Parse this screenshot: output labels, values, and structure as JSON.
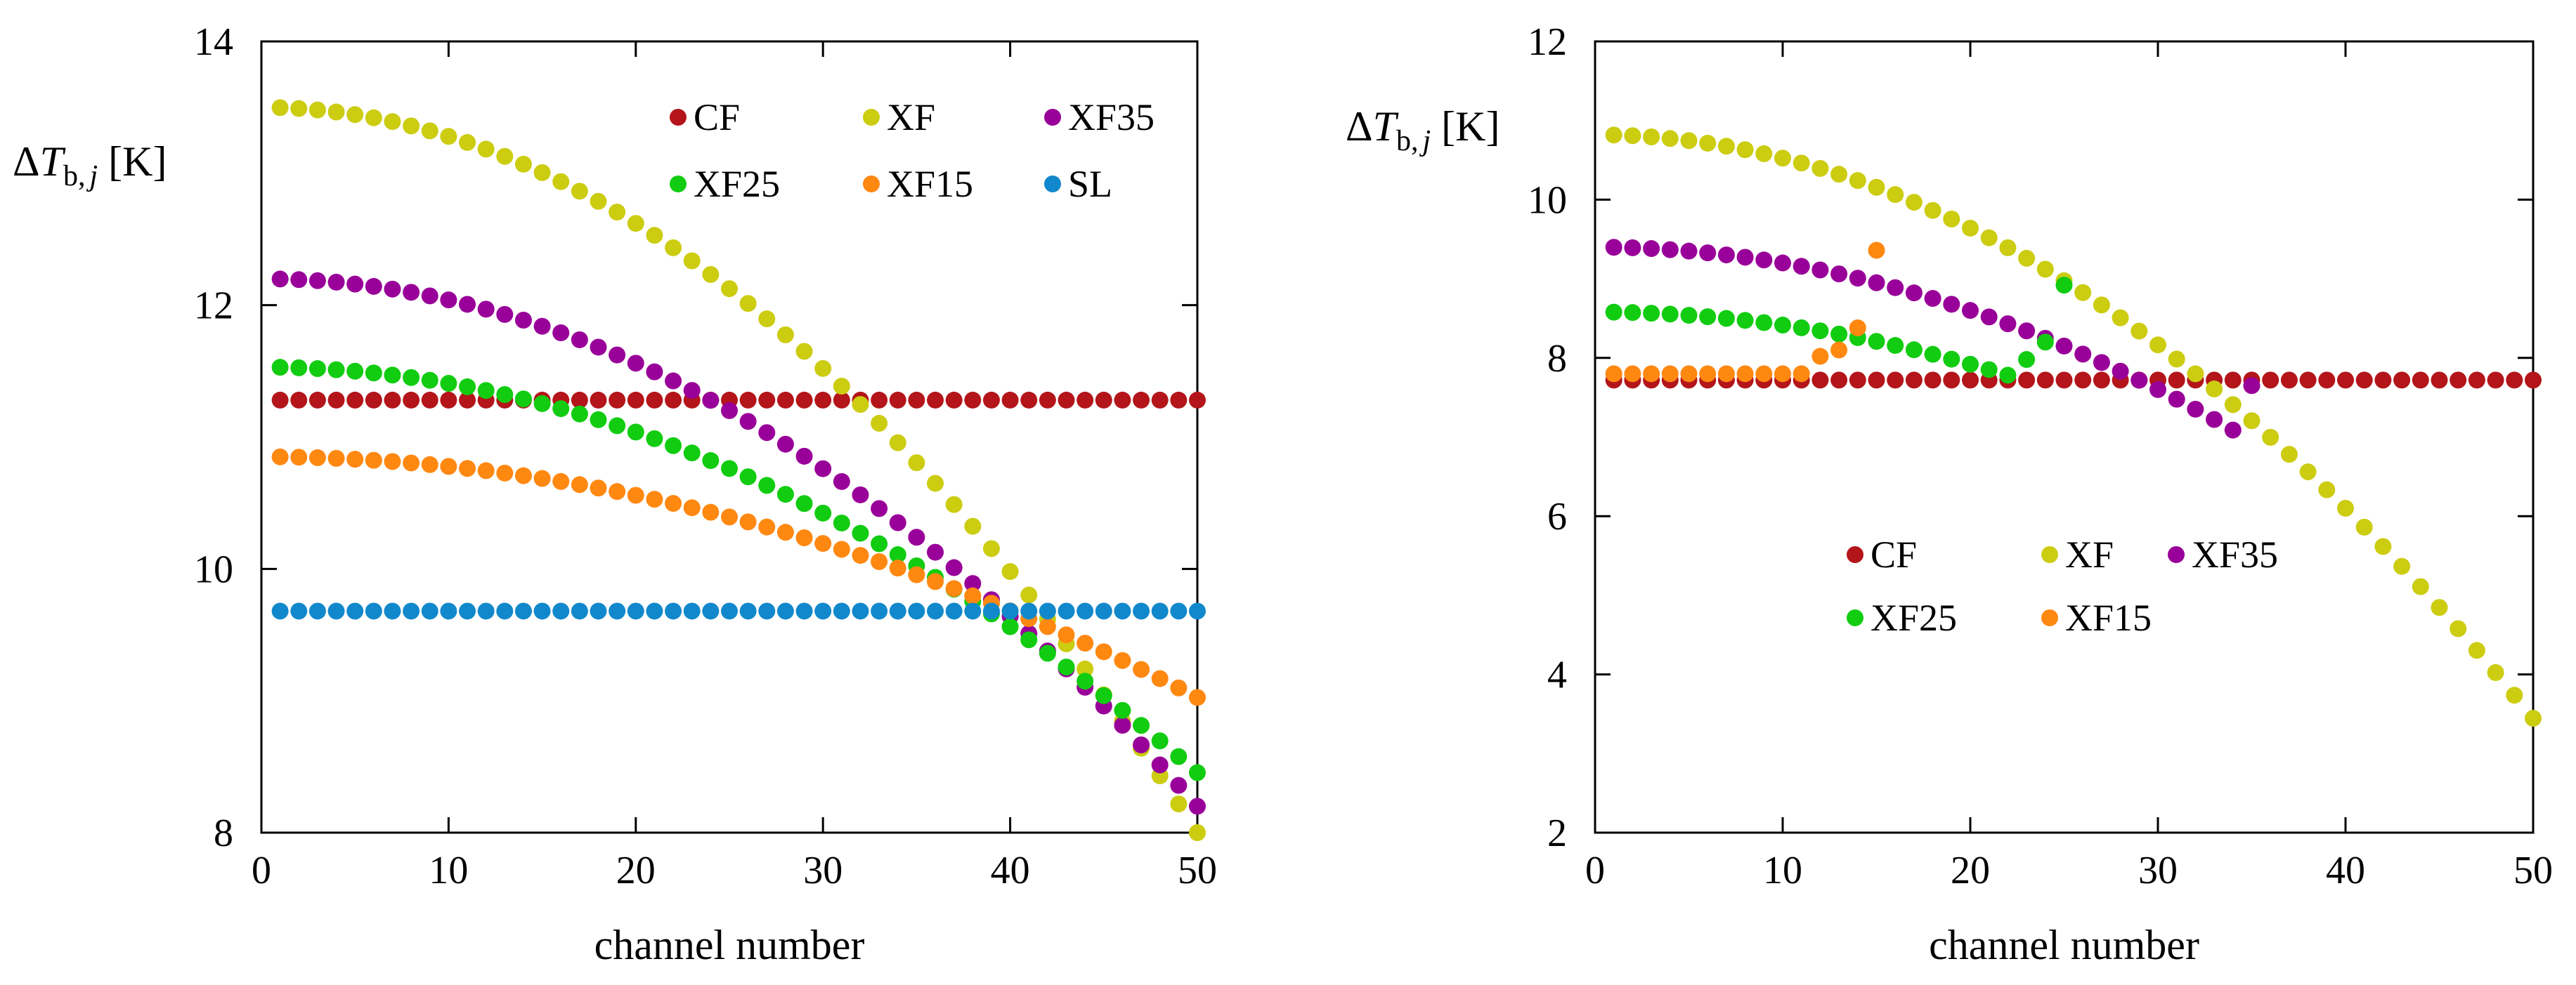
{
  "chart_data": [
    {
      "type": "scatter",
      "id": "left",
      "title": "",
      "xlabel": "channel number",
      "ylabel": {
        "delta": "Δ",
        "var": "T",
        "sub1": "b,",
        "sub2": "j",
        "unit": " [K]"
      },
      "xlim": [
        0,
        50
      ],
      "ylim": [
        8,
        14
      ],
      "xticks": [
        "0",
        "10",
        "20",
        "30",
        "40",
        "50"
      ],
      "yticks": [
        "8",
        "10",
        "12",
        "14"
      ],
      "x": [
        1,
        2,
        3,
        4,
        5,
        6,
        7,
        8,
        9,
        10,
        11,
        12,
        13,
        14,
        15,
        16,
        17,
        18,
        19,
        20,
        21,
        22,
        23,
        24,
        25,
        26,
        27,
        28,
        29,
        30,
        31,
        32,
        33,
        34,
        35,
        36,
        37,
        38,
        39,
        40,
        41,
        42,
        43,
        44,
        45,
        46,
        47,
        48,
        49,
        50
      ],
      "legend_position": "top-right",
      "series": [
        {
          "name": "CF",
          "color": "#b3151a",
          "model": "const",
          "params": {
            "c": 11.28
          }
        },
        {
          "name": "XF",
          "color": "#cccc11",
          "model": "quad",
          "params": {
            "a": 13.5,
            "b": 0.0022
          }
        },
        {
          "name": "XF35",
          "color": "#990099",
          "model": "quad",
          "params": {
            "a": 12.2,
            "b": 0.0016
          }
        },
        {
          "name": "XF25",
          "color": "#11cc11",
          "model": "quad",
          "params": {
            "a": 11.53,
            "b": 0.00123
          }
        },
        {
          "name": "XF15",
          "color": "#ff8811",
          "model": "quad",
          "params": {
            "a": 10.85,
            "b": 0.00073
          }
        },
        {
          "name": "SL",
          "color": "#1188cc",
          "model": "const",
          "params": {
            "c": 9.68
          }
        }
      ]
    },
    {
      "type": "scatter",
      "id": "right",
      "title": "",
      "xlabel": "channel number",
      "ylabel": {
        "delta": "Δ",
        "var": "T",
        "sub1": "b,",
        "sub2": "j",
        "unit": " [K]"
      },
      "xlim": [
        0,
        50
      ],
      "ylim": [
        2,
        12
      ],
      "xticks": [
        "0",
        "10",
        "20",
        "30",
        "40",
        "50"
      ],
      "yticks": [
        "2",
        "4",
        "6",
        "8",
        "10",
        "12"
      ],
      "legend_position": "center-left",
      "series": [
        {
          "name": "CF",
          "color": "#b3151a",
          "model": "const",
          "params": {
            "c": 7.72
          },
          "x_range": [
            1,
            50
          ]
        },
        {
          "name": "XF",
          "color": "#cccc11",
          "model": "quad",
          "params": {
            "a": 10.82,
            "b": 0.00295
          },
          "x_range": [
            1,
            50
          ]
        },
        {
          "name": "XF35",
          "color": "#990099",
          "model": "quad",
          "params": {
            "a": 9.4,
            "b": 0.002
          },
          "x_range": [
            1,
            34
          ]
        },
        {
          "name": "XF25",
          "color": "#11cc11",
          "model": "quad",
          "params": {
            "a": 8.58,
            "b": 0.00165
          },
          "x_range": [
            1,
            22
          ]
        },
        {
          "name": "XF15",
          "color": "#ff8811",
          "model": "const",
          "params": {
            "c": 7.8
          },
          "x_range": [
            1,
            11
          ]
        }
      ],
      "extra_points": [
        {
          "series": "XF35",
          "x": 35,
          "y": 7.65
        },
        {
          "series": "XF25",
          "x": 23,
          "y": 7.98
        },
        {
          "series": "XF25",
          "x": 24,
          "y": 8.2
        },
        {
          "series": "XF25",
          "x": 25,
          "y": 8.92
        },
        {
          "series": "XF15",
          "x": 12,
          "y": 8.02
        },
        {
          "series": "XF15",
          "x": 13,
          "y": 8.1
        },
        {
          "series": "XF15",
          "x": 14,
          "y": 8.38
        },
        {
          "series": "XF15",
          "x": 15,
          "y": 9.36
        }
      ]
    }
  ]
}
